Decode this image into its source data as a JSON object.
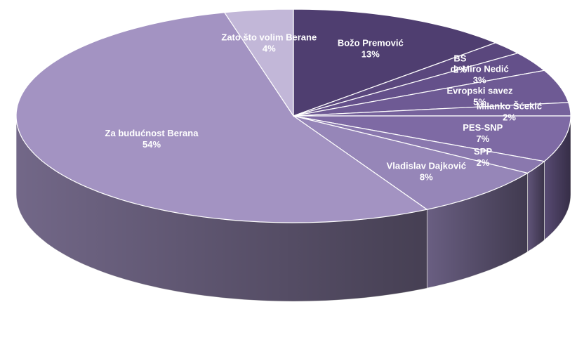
{
  "chart_data": {
    "type": "pie",
    "style": "3d",
    "legend": "none",
    "slices": [
      {
        "label": "Božo Premović",
        "value": 13,
        "value_label": "13%",
        "color": "#4f3e70",
        "text_color": "#ffffff"
      },
      {
        "label": "BS",
        "value": 2,
        "value_label": "2%",
        "color": "#5a477d",
        "text_color": "#ffffff"
      },
      {
        "label": "dr Miro Nedić",
        "value": 3,
        "value_label": "3%",
        "color": "#64508a",
        "text_color": "#ffffff"
      },
      {
        "label": "Evropski savez",
        "value": 5,
        "value_label": "5%",
        "color": "#6e5a94",
        "text_color": "#ffffff"
      },
      {
        "label": "Milanko Šćekić",
        "value": 2,
        "value_label": "2%",
        "color": "#76629c",
        "text_color": "#ffffff"
      },
      {
        "label": "PES-SNP",
        "value": 7,
        "value_label": "7%",
        "color": "#7e6aa4",
        "text_color": "#ffffff"
      },
      {
        "label": "SPP",
        "value": 2,
        "value_label": "2%",
        "color": "#8a78ae",
        "text_color": "#ffffff"
      },
      {
        "label": "Vladislav Dajković",
        "value": 8,
        "value_label": "8%",
        "color": "#9686b8",
        "text_color": "#ffffff"
      },
      {
        "label": "Za budućnost Berana",
        "value": 54,
        "value_label": "54%",
        "color": "#a393c2",
        "text_color": "#ffffff"
      },
      {
        "label": "Zato što volim Berane",
        "value": 4,
        "value_label": "4%",
        "color": "#c2b7d8",
        "text_color": "#ffffff"
      }
    ]
  }
}
